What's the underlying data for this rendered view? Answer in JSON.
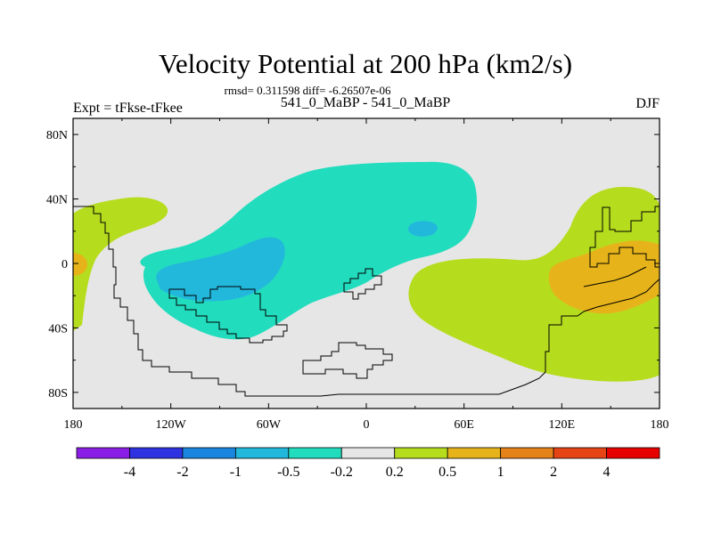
{
  "chart_data": {
    "type": "heatmap",
    "title": "Velocity Potential at 200 hPa (km2/s)",
    "subtitle": "rmsd= 0.311598 diff= -6.26507e-06",
    "left_label": "Expt = tFkse-tFkee",
    "center_label": "541_0_MaBP - 541_0_MaBP",
    "right_label": "DJF",
    "x_ticks": [
      "180",
      "120W",
      "60W",
      "0",
      "60E",
      "120E",
      "180"
    ],
    "x_tick_values": [
      -180,
      -120,
      -60,
      0,
      60,
      120,
      180
    ],
    "y_ticks": [
      "80N",
      "40N",
      "0",
      "40S",
      "80S"
    ],
    "y_tick_values": [
      80,
      40,
      0,
      -40,
      -80
    ],
    "xlim": [
      -180,
      180
    ],
    "ylim": [
      -90,
      90
    ],
    "colorbar": {
      "labels": [
        "-4",
        "-2",
        "-1",
        "-0.5",
        "-0.2",
        "0.2",
        "0.5",
        "1",
        "2",
        "4"
      ],
      "colors": [
        "#8a1ee6",
        "#2e32e0",
        "#1a86e0",
        "#22b8dc",
        "#22dcbe",
        "#e6e6e6",
        "#b6dc1e",
        "#e6b41a",
        "#e6821a",
        "#e64414",
        "#e60000"
      ]
    },
    "regions": [
      {
        "level": "-0.5 to -0.2",
        "color": "#22dcbe",
        "description": "large area over central/eastern Pacific into Atlantic"
      },
      {
        "level": "-1 to -0.5",
        "color": "#22b8dc",
        "description": "core over eastern Pacific near equator"
      },
      {
        "level": "-1 to -0.5",
        "color": "#22b8dc",
        "description": "small core over Africa near 20N"
      },
      {
        "level": "0.2 to 0.5",
        "color": "#b6dc1e",
        "description": "Indian Ocean / Maritime Continent"
      },
      {
        "level": "0.5 to 1",
        "color": "#e6b41a",
        "description": "core near 150E equator"
      },
      {
        "level": "0.2 to 0.5",
        "color": "#b6dc1e",
        "description": "western Pacific near dateline"
      },
      {
        "level": "0.5 to 1",
        "color": "#e6b41a",
        "description": "small core at 180 equator"
      }
    ]
  }
}
